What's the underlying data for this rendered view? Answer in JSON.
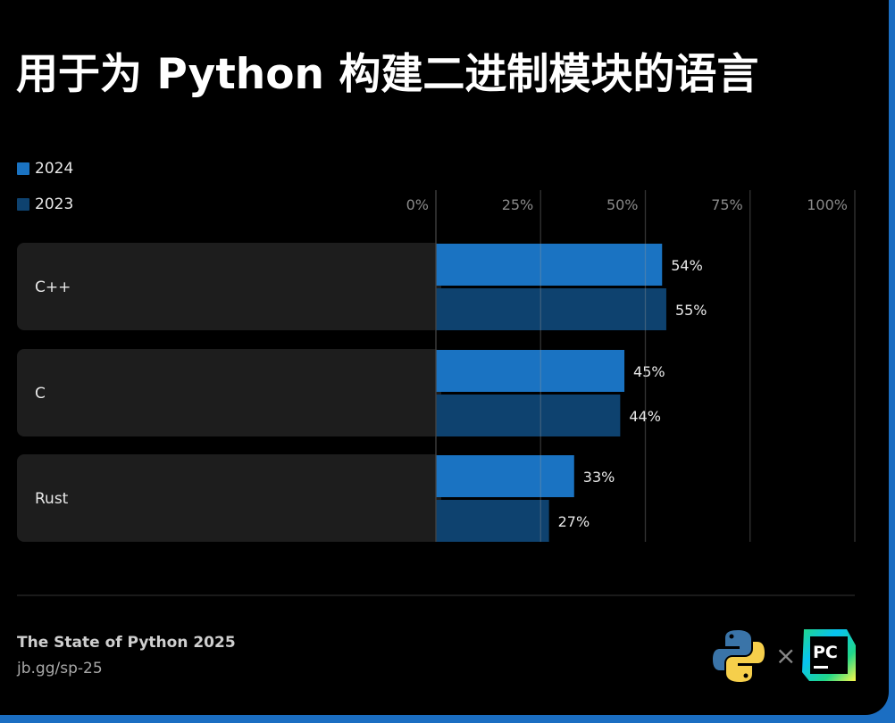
{
  "title": "用于为 Python 构建二进制模块的语言",
  "colors": {
    "2024": "#1a73c2",
    "2023": "#0e426f",
    "row_bg": "#1d1d1d",
    "grid": "#3a3a3a",
    "frame": "#1b6ec2"
  },
  "chart_data": {
    "type": "bar",
    "orientation": "horizontal",
    "title": "用于为 Python 构建二进制模块的语言",
    "categories": [
      "C++",
      "C",
      "Rust"
    ],
    "series": [
      {
        "name": "2024",
        "values": [
          54,
          45,
          33
        ]
      },
      {
        "name": "2023",
        "values": [
          55,
          44,
          27
        ]
      }
    ],
    "value_labels": [
      [
        "54%",
        "45%",
        "33%"
      ],
      [
        "55%",
        "44%",
        "27%"
      ]
    ],
    "xlim": [
      0,
      100
    ],
    "xticks": [
      "0%",
      "25%",
      "50%",
      "75%",
      "100%"
    ],
    "grid": true,
    "legend_placement": "top-left"
  },
  "footer": {
    "title": "The State of Python 2025",
    "link": "jb.gg/sp-25"
  },
  "logos": {
    "python": "Python logo",
    "separator": "×",
    "pycharm": "PC"
  }
}
